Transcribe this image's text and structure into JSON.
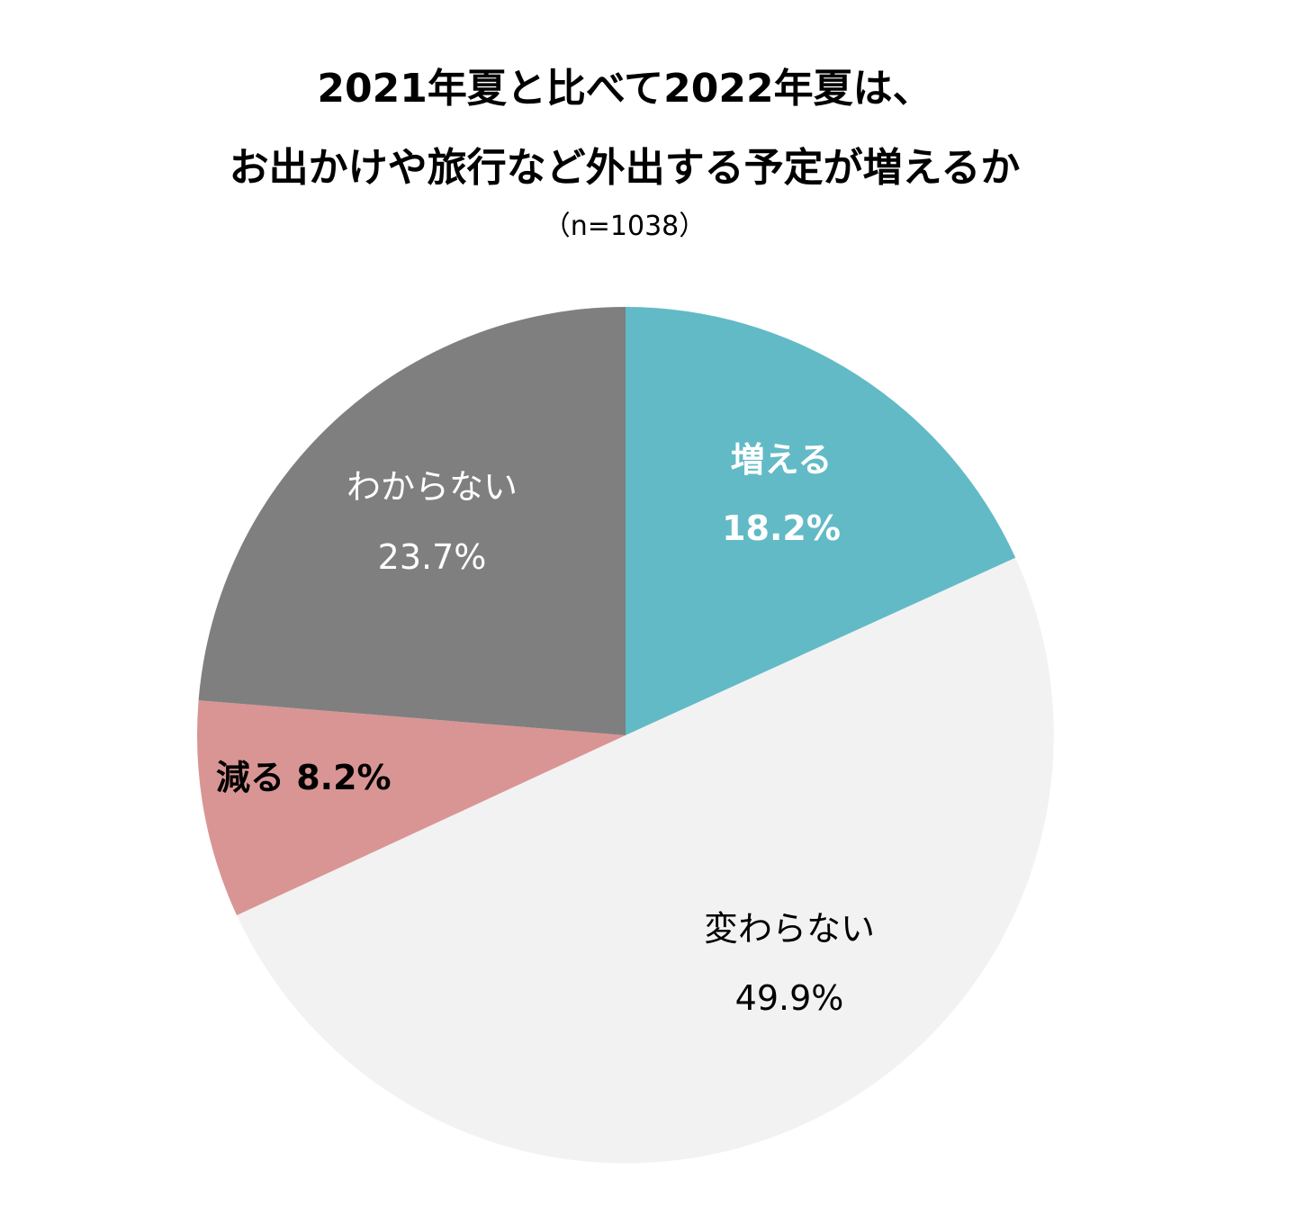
{
  "chart_data": {
    "type": "pie",
    "title_lines": [
      "2021年夏と比べて2022年夏は、",
      "お出かけや旅行など外出する予定が増えるか"
    ],
    "subtitle": "（n=1038）",
    "slices": [
      {
        "label": "増える",
        "value": 18.2,
        "value_label": "18.2%",
        "color": "#62BAC6",
        "text_color": "#FFFFFF",
        "bold": true
      },
      {
        "label": "変わらない",
        "value": 49.9,
        "value_label": "49.9%",
        "color": "#F2F2F2",
        "text_color": "#000000",
        "bold": false
      },
      {
        "label": "減る",
        "value": 8.2,
        "value_label": "8.2%",
        "color": "#D99594",
        "text_color": "#000000",
        "bold": true
      },
      {
        "label": "わからない",
        "value": 23.7,
        "value_label": "23.7%",
        "color": "#7F7F7F",
        "text_color": "#FFFFFF",
        "bold": false
      }
    ],
    "start_angle": "12 o'clock",
    "direction": "clockwise"
  }
}
